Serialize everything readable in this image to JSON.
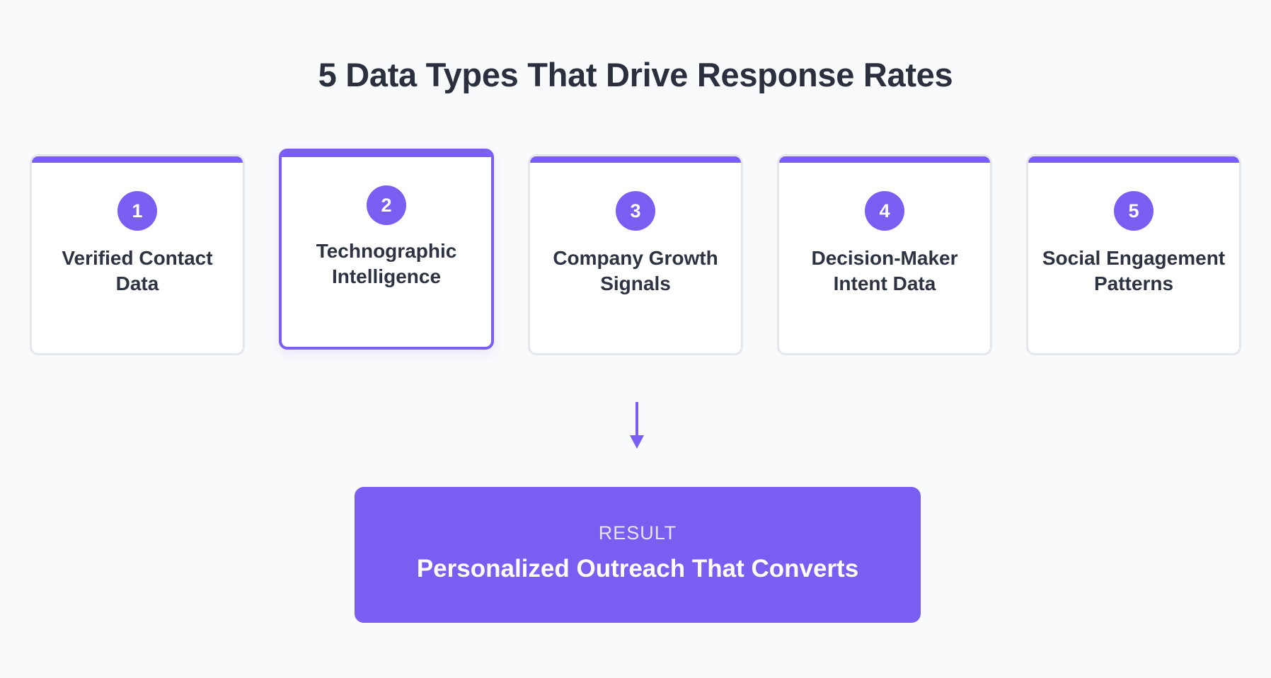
{
  "title": "5 Data Types That Drive Response Rates",
  "cards": [
    {
      "number": "1",
      "label": "Verified Contact Data",
      "active": false
    },
    {
      "number": "2",
      "label": "Technographic Intelligence",
      "active": true
    },
    {
      "number": "3",
      "label": "Company Growth Signals",
      "active": false
    },
    {
      "number": "4",
      "label": "Decision-Maker Intent Data",
      "active": false
    },
    {
      "number": "5",
      "label": "Social Engagement Patterns",
      "active": false
    }
  ],
  "result": {
    "kicker": "RESULT",
    "title": "Personalized Outreach That Converts"
  },
  "colors": {
    "accent": "#7a5ef2",
    "title_text": "#2a303d",
    "card_border": "#e3e6ec",
    "background": "#f9fafc"
  },
  "icons": {
    "arrow": "arrow-down-icon"
  }
}
